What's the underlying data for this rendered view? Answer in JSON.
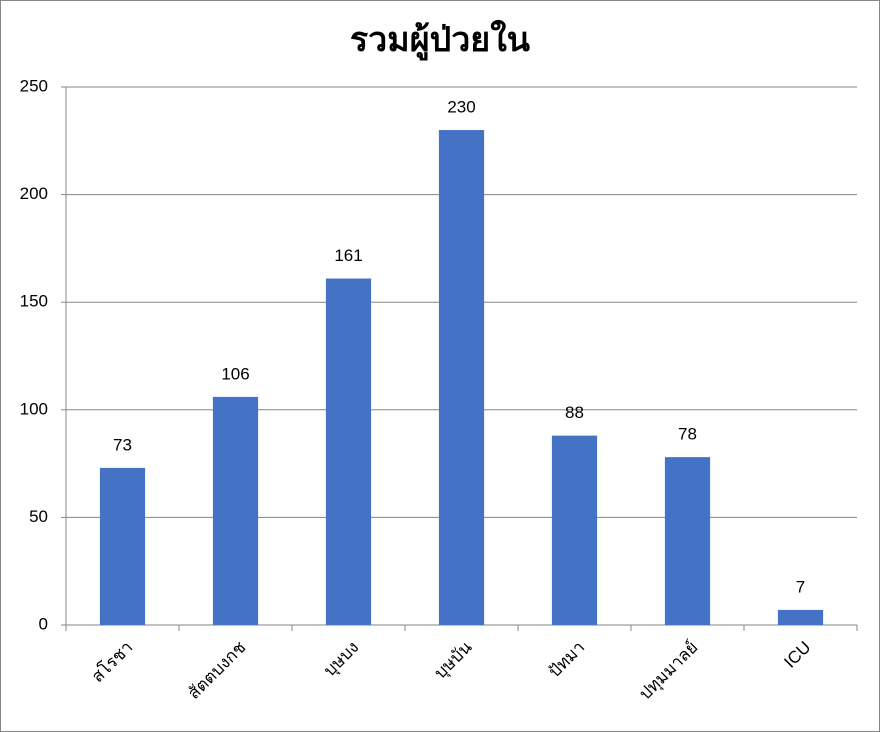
{
  "chart_data": {
    "type": "bar",
    "title": "รวมผู้ป่วยใน",
    "categories": [
      "สโรชา",
      "สัตตบงกช",
      "บุษบง",
      "บุษบัน",
      "ปัทมา",
      "ปทุมมาลย์",
      "ICU"
    ],
    "values": [
      73,
      106,
      161,
      230,
      88,
      78,
      7
    ],
    "color": "#4472c4",
    "ylim": [
      0,
      250
    ],
    "yticks": [
      0,
      50,
      100,
      150,
      200,
      250
    ],
    "grid": true
  }
}
